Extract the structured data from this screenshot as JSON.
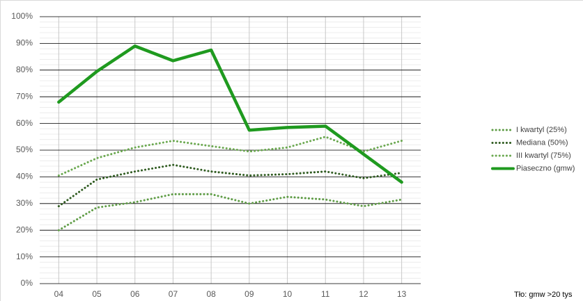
{
  "chart_data": {
    "type": "line",
    "categories": [
      "04",
      "05",
      "06",
      "07",
      "08",
      "09",
      "10",
      "11",
      "12",
      "13"
    ],
    "series": [
      {
        "name": "I kwartyl (25%)",
        "color": "#5e9c45",
        "style": "dotted",
        "values": [
          20,
          28.5,
          30.5,
          33.5,
          33.5,
          30,
          32.5,
          31.5,
          29,
          31.5
        ]
      },
      {
        "name": "Mediana (50%)",
        "color": "#2f5b20",
        "style": "dotted",
        "values": [
          29,
          39,
          42,
          44.5,
          42,
          40.5,
          41,
          42,
          39.5,
          41.5
        ]
      },
      {
        "name": "III kwartyl (75%)",
        "color": "#6aa84f",
        "style": "dotted",
        "values": [
          40.5,
          47,
          51,
          53.5,
          51.5,
          49.5,
          51,
          55,
          49.5,
          53.5
        ]
      },
      {
        "name": "Piaseczno (gmw)",
        "color": "#1f9a1f",
        "style": "solid",
        "values": [
          68,
          79.5,
          89,
          83.5,
          87.5,
          57.5,
          58.5,
          59,
          48.5,
          38
        ]
      }
    ],
    "ylim": [
      0,
      100
    ],
    "yticks": [
      {
        "value": 0,
        "label": "0%"
      },
      {
        "value": 10,
        "label": "10%"
      },
      {
        "value": 20,
        "label": "20%"
      },
      {
        "value": 30,
        "label": "30%"
      },
      {
        "value": 40,
        "label": "40%"
      },
      {
        "value": 50,
        "label": "50%"
      },
      {
        "value": 60,
        "label": "60%"
      },
      {
        "value": 70,
        "label": "70%"
      },
      {
        "value": 80,
        "label": "80%"
      },
      {
        "value": 90,
        "label": "90%"
      },
      {
        "value": 100,
        "label": "100%"
      }
    ],
    "grid": true,
    "minor_grid_step": 2,
    "legend": "right",
    "note": "Tło: gmw >20 tys"
  }
}
